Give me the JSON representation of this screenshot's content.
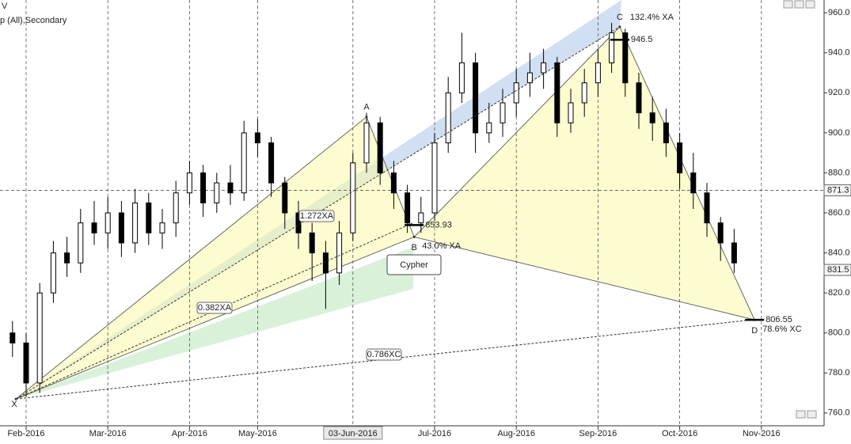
{
  "chart_data": {
    "type": "candlestick",
    "header": [
      "V",
      "p (All),Secondary"
    ],
    "categories": [
      null,
      "Feb-2016",
      null,
      null,
      null,
      null,
      null,
      "Mar-2016",
      null,
      null,
      null,
      null,
      null,
      "Apr-2016",
      null,
      null,
      null,
      null,
      "May-2016",
      null,
      null,
      null,
      null,
      null,
      null,
      "03-Jun-2016",
      null,
      null,
      null,
      null,
      null,
      "Jul-2016",
      null,
      null,
      null,
      null,
      null,
      "Aug-2016",
      null,
      null,
      null,
      null,
      null,
      "Sep-2016",
      null,
      null,
      null,
      null,
      null,
      "Oct-2016",
      null,
      null,
      null,
      null,
      null,
      "Nov-2016"
    ],
    "open": [
      800,
      795,
      775,
      820,
      840,
      835,
      855,
      850,
      860,
      845,
      865,
      850,
      855,
      870,
      880,
      865,
      875,
      870,
      900,
      895,
      875,
      860,
      850,
      840,
      830,
      850,
      885,
      905,
      880,
      870,
      855,
      860,
      895,
      920,
      935,
      900,
      905,
      915,
      925,
      930,
      935,
      905,
      915,
      925,
      935,
      950,
      925,
      910,
      905,
      895,
      880,
      870,
      855,
      845,
      null,
      null
    ],
    "high": [
      806,
      800,
      825,
      846,
      848,
      862,
      866,
      868,
      866,
      872,
      870,
      862,
      876,
      886,
      884,
      880,
      884,
      906,
      907,
      898,
      878,
      866,
      855,
      846,
      856,
      890,
      910,
      908,
      886,
      874,
      868,
      900,
      928,
      950,
      940,
      915,
      922,
      932,
      940,
      942,
      938,
      922,
      932,
      942,
      955,
      952,
      930,
      918,
      912,
      900,
      890,
      875,
      858,
      852,
      null,
      null
    ],
    "low": [
      788,
      768,
      770,
      815,
      828,
      830,
      844,
      842,
      838,
      840,
      844,
      842,
      848,
      864,
      858,
      860,
      864,
      866,
      888,
      868,
      852,
      842,
      826,
      812,
      824,
      846,
      880,
      874,
      862,
      850,
      850,
      856,
      890,
      915,
      890,
      895,
      898,
      908,
      918,
      922,
      898,
      900,
      908,
      918,
      930,
      918,
      902,
      896,
      888,
      872,
      862,
      848,
      836,
      830,
      null,
      null
    ],
    "close": [
      795,
      775,
      820,
      840,
      835,
      855,
      850,
      860,
      845,
      865,
      850,
      855,
      870,
      880,
      865,
      875,
      870,
      900,
      895,
      875,
      860,
      850,
      840,
      830,
      850,
      885,
      905,
      880,
      870,
      855,
      860,
      895,
      920,
      935,
      900,
      905,
      915,
      925,
      930,
      935,
      905,
      915,
      925,
      935,
      950,
      925,
      910,
      905,
      895,
      880,
      870,
      855,
      845,
      835,
      null,
      null
    ],
    "ylim": [
      753.6,
      966.4
    ],
    "yticks": [
      {
        "value": 760,
        "label": "760.0"
      },
      {
        "value": 780,
        "label": "780.0"
      },
      {
        "value": 800,
        "label": "800.0"
      },
      {
        "value": 820,
        "label": "820.0"
      },
      {
        "value": 840,
        "label": "840.0"
      },
      {
        "value": 860,
        "label": "860.0"
      },
      {
        "value": 880,
        "label": "880.0"
      },
      {
        "value": 900,
        "label": "900.0"
      },
      {
        "value": 920,
        "label": "920.0"
      },
      {
        "value": 940,
        "label": "940.0"
      },
      {
        "value": 960,
        "label": "960.0"
      }
    ],
    "price_tags": [
      871.3,
      831.5
    ],
    "pattern": {
      "name": "Cypher",
      "points": [
        {
          "label": "X",
          "index": 0.25,
          "price": 767
        },
        {
          "label": "A",
          "index": 26,
          "price": 908
        },
        {
          "label": "B",
          "index": 29.5,
          "price": 848,
          "level": 853.93,
          "ratio": "43.0% XA"
        },
        {
          "label": "C",
          "index": 44.6,
          "price": 953,
          "level": 946.5,
          "ratio": "132.4% XA"
        },
        {
          "label": "D",
          "index": 54.5,
          "price": 806.55,
          "level": 806.55,
          "ratio": "78.6% XC"
        }
      ],
      "extensions": [
        "1.272XA",
        "0.382XA",
        "0.786XC"
      ]
    }
  }
}
